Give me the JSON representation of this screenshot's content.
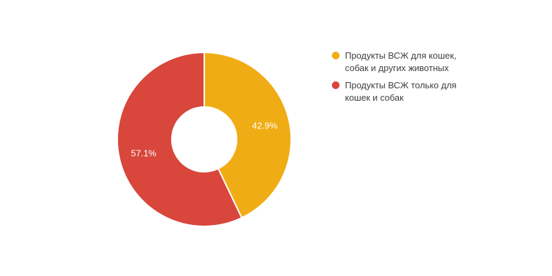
{
  "chart_data": {
    "type": "pie",
    "subtype": "donut",
    "title": "",
    "direction": "clockwise",
    "start_angle_deg": 0,
    "legend_position": "right",
    "slices": [
      {
        "label": "Продукты ВСЖ для кошек, собак и других животных",
        "value": 42.9,
        "percent_label": "42.9%",
        "color": "#F0AC14"
      },
      {
        "label": "Продукты ВСЖ только для кошек и собак",
        "value": 57.1,
        "percent_label": "57.1%",
        "color": "#D8463C"
      }
    ],
    "slice_label_color": "#ffffff",
    "slice_divider_color": "#ffffff"
  },
  "legend": {
    "text_color": "#3E3E3E",
    "items": [
      {
        "label": "Продукты ВСЖ для кошек, собак и других животных",
        "color": "#F0AC14"
      },
      {
        "label": "Продукты ВСЖ только для кошек и собак",
        "color": "#D8463C"
      }
    ]
  }
}
